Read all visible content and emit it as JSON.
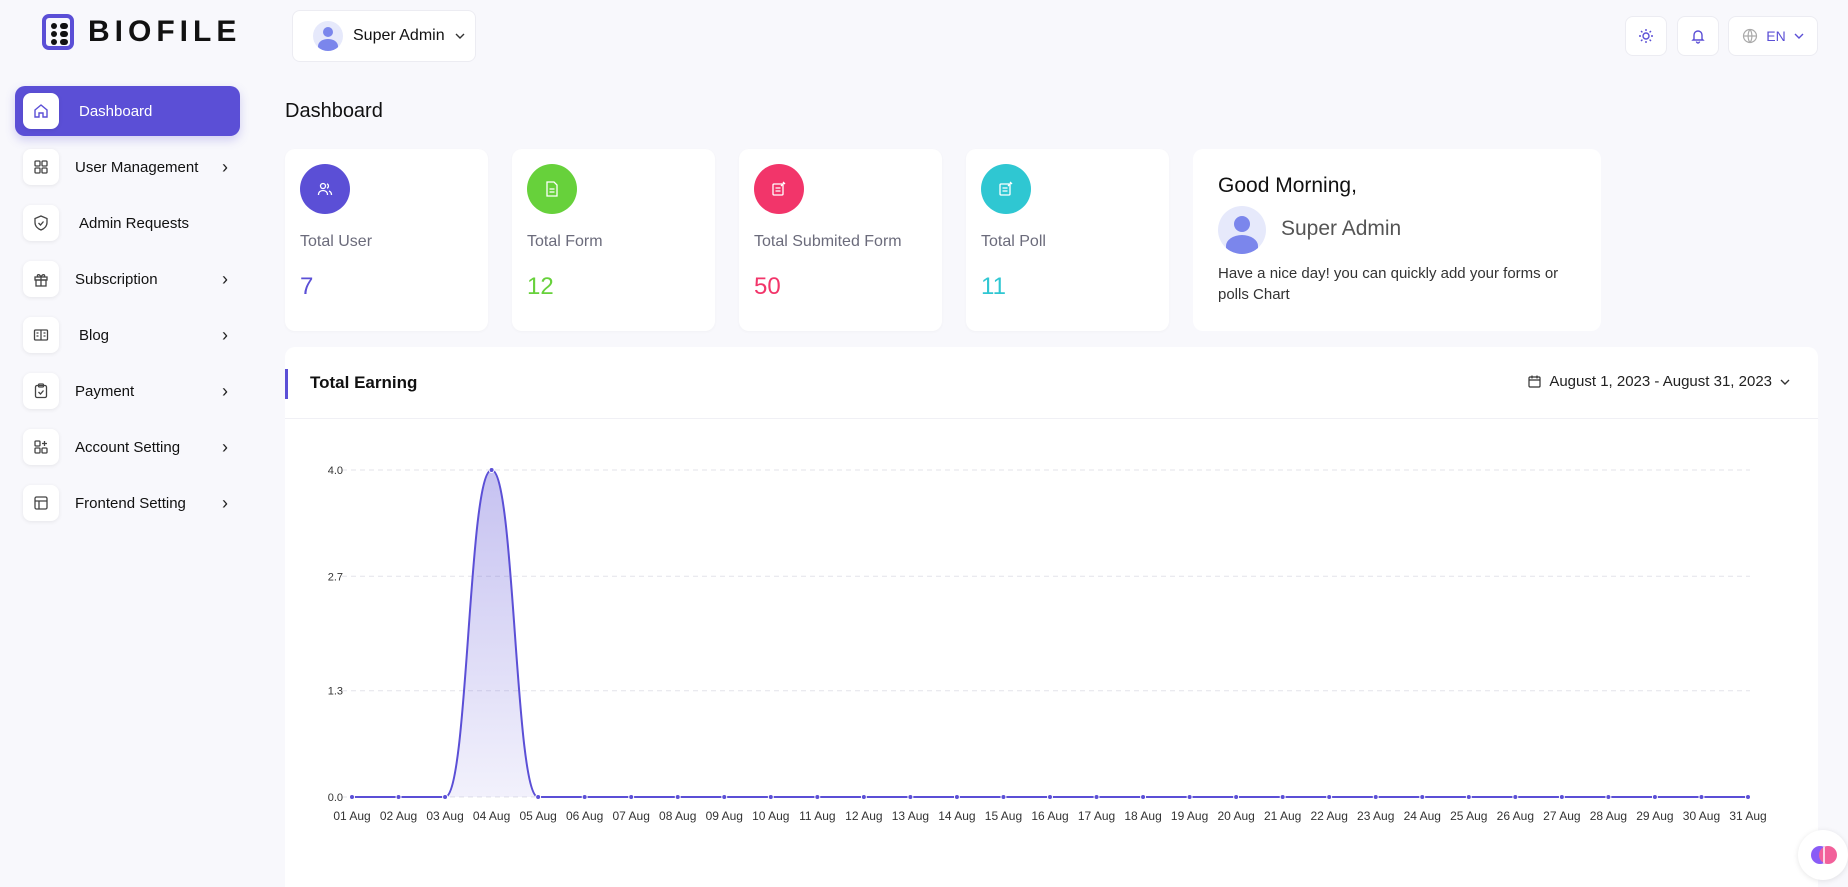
{
  "brand": {
    "name": "BIOFILE",
    "accent": "#5b4fd6"
  },
  "header": {
    "user_name": "Super Admin",
    "language": "EN"
  },
  "sidebar": {
    "items": [
      {
        "label": "Dashboard",
        "icon": "home-icon",
        "active": true,
        "has_submenu": false
      },
      {
        "label": "User Management",
        "icon": "grid-icon",
        "has_submenu": true
      },
      {
        "label": "Admin Requests",
        "icon": "shield-check-icon",
        "has_submenu": false
      },
      {
        "label": "Subscription",
        "icon": "gift-icon",
        "has_submenu": true
      },
      {
        "label": "Blog",
        "icon": "blog-icon",
        "has_submenu": true
      },
      {
        "label": "Payment",
        "icon": "clipboard-check-icon",
        "has_submenu": true
      },
      {
        "label": "Account Setting",
        "icon": "grid-plus-icon",
        "has_submenu": true
      },
      {
        "label": "Frontend Setting",
        "icon": "layout-icon",
        "has_submenu": true
      }
    ]
  },
  "main": {
    "title": "Dashboard",
    "stats": [
      {
        "label": "Total User",
        "value": "7",
        "color": "#5b4fd6",
        "icon": "users-icon"
      },
      {
        "label": "Total Form",
        "value": "12",
        "color": "#67d13b",
        "icon": "document-icon"
      },
      {
        "label": "Total Submited Form",
        "value": "50",
        "color": "#f2356a",
        "icon": "form-submit-icon"
      },
      {
        "label": "Total Poll",
        "value": "11",
        "color": "#2fc7d2",
        "icon": "poll-icon"
      }
    ],
    "greeting": {
      "title": "Good Morning,",
      "name": "Super Admin",
      "message": "Have a nice day! you can quickly add your forms or polls Chart"
    },
    "earning": {
      "title": "Total Earning",
      "date_range": "August 1, 2023 - August 31, 2023"
    }
  },
  "chart_data": {
    "type": "area",
    "title": "Total Earning",
    "x": [
      "01 Aug",
      "02 Aug",
      "03 Aug",
      "04 Aug",
      "05 Aug",
      "06 Aug",
      "07 Aug",
      "08 Aug",
      "09 Aug",
      "10 Aug",
      "11 Aug",
      "12 Aug",
      "13 Aug",
      "14 Aug",
      "15 Aug",
      "16 Aug",
      "17 Aug",
      "18 Aug",
      "19 Aug",
      "20 Aug",
      "21 Aug",
      "22 Aug",
      "23 Aug",
      "24 Aug",
      "25 Aug",
      "26 Aug",
      "27 Aug",
      "28 Aug",
      "29 Aug",
      "30 Aug",
      "31 Aug"
    ],
    "values": [
      0,
      0,
      0,
      4,
      0,
      0,
      0,
      0,
      0,
      0,
      0,
      0,
      0,
      0,
      0,
      0,
      0,
      0,
      0,
      0,
      0,
      0,
      0,
      0,
      0,
      0,
      0,
      0,
      0,
      0,
      0
    ],
    "y_ticks": [
      "0.0",
      "1.3",
      "2.7",
      "4.0"
    ],
    "ylim": [
      0,
      4
    ],
    "grid": true,
    "color": "#5b4fd6"
  }
}
